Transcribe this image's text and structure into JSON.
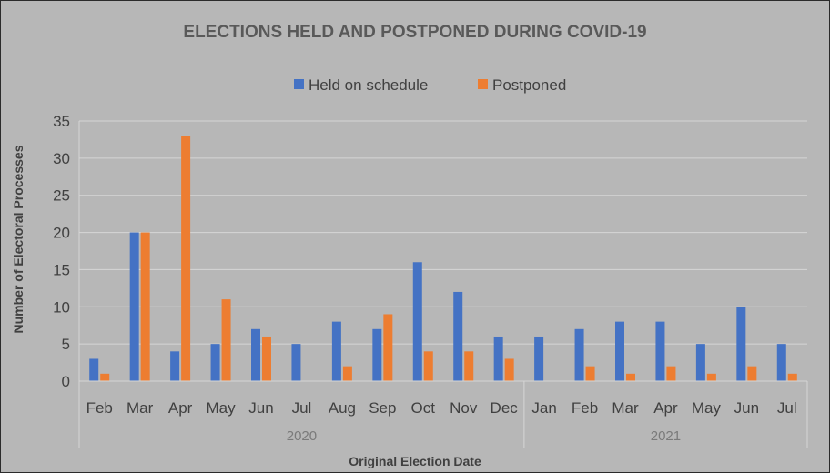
{
  "chart_data": {
    "type": "bar",
    "title": "ELECTIONS HELD AND POSTPONED DURING COVID-19",
    "xlabel": "Original Election Date",
    "ylabel": "Number of Electoral Processes",
    "ylim": [
      0,
      35
    ],
    "yticks": [
      0,
      5,
      10,
      15,
      20,
      25,
      30,
      35
    ],
    "grid": true,
    "legend_position": "top",
    "categories": [
      "Feb",
      "Mar",
      "Apr",
      "May",
      "Jun",
      "Jul",
      "Aug",
      "Sep",
      "Oct",
      "Nov",
      "Dec",
      "Jan",
      "Feb",
      "Mar",
      "Apr",
      "May",
      "Jun",
      "Jul"
    ],
    "year_groups": [
      {
        "label": "2020",
        "start": 0,
        "end": 10
      },
      {
        "label": "2021",
        "start": 11,
        "end": 17
      }
    ],
    "series": [
      {
        "name": "Held on schedule",
        "color": "#4472c4",
        "values": [
          3,
          20,
          4,
          5,
          7,
          5,
          8,
          7,
          16,
          12,
          6,
          6,
          7,
          8,
          8,
          5,
          10,
          5
        ]
      },
      {
        "name": "Postponed",
        "color": "#ed7d31",
        "values": [
          1,
          20,
          33,
          11,
          6,
          0,
          2,
          9,
          4,
          4,
          3,
          0,
          2,
          1,
          2,
          1,
          2,
          1
        ]
      }
    ]
  }
}
